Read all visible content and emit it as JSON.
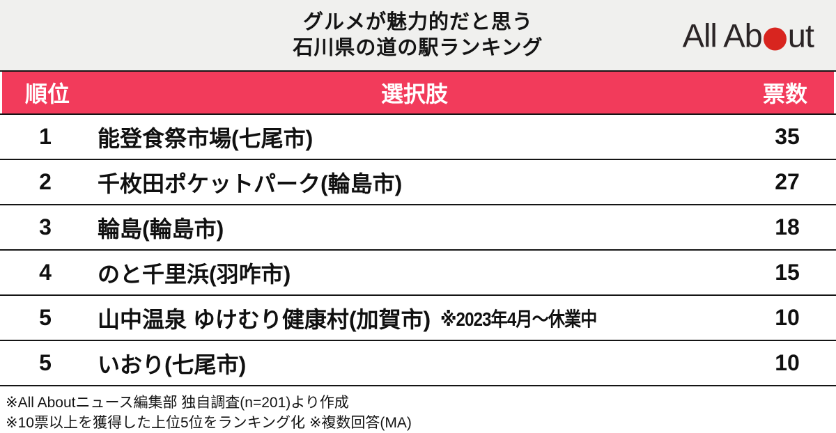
{
  "header": {
    "title_line1": "グルメが魅力的だと思う",
    "title_line2": "石川県の道の駅ランキング",
    "logo": {
      "part1": "All Ab",
      "part2": "ut",
      "dot_color": "#d8251f"
    }
  },
  "colors": {
    "title_bar_bg": "#f0f0ee",
    "table_header_bg": "#f23b5b",
    "table_header_text": "#ffffff",
    "border": "#151515",
    "logo_dot": "#d8251f"
  },
  "table": {
    "headers": {
      "rank": "順位",
      "choice": "選択肢",
      "votes": "票数"
    },
    "rows": [
      {
        "rank": "1",
        "name": "能登食祭市場(七尾市)",
        "note": "",
        "votes": "35"
      },
      {
        "rank": "2",
        "name": "千枚田ポケットパーク(輪島市)",
        "note": "",
        "votes": "27"
      },
      {
        "rank": "3",
        "name": "輪島(輪島市)",
        "note": "",
        "votes": "18"
      },
      {
        "rank": "4",
        "name": "のと千里浜(羽咋市)",
        "note": "",
        "votes": "15"
      },
      {
        "rank": "5",
        "name": "山中温泉 ゆけむり健康村(加賀市)",
        "note": "※2023年4月〜休業中",
        "votes": "10"
      },
      {
        "rank": "5",
        "name": "いおり(七尾市)",
        "note": "",
        "votes": "10"
      }
    ]
  },
  "footer": {
    "line1": "※All Aboutニュース編集部 独自調査(n=201)より作成",
    "line2": "※10票以上を獲得した上位5位をランキング化 ※複数回答(MA)"
  },
  "chart_data": {
    "type": "table",
    "title": "グルメが魅力的だと思う石川県の道の駅ランキング",
    "columns": [
      "順位",
      "選択肢",
      "票数"
    ],
    "rows": [
      {
        "rank": 1,
        "choice": "能登食祭市場(七尾市)",
        "votes": 35
      },
      {
        "rank": 2,
        "choice": "千枚田ポケットパーク(輪島市)",
        "votes": 27
      },
      {
        "rank": 3,
        "choice": "輪島(輪島市)",
        "votes": 18
      },
      {
        "rank": 4,
        "choice": "のと千里浜(羽咋市)",
        "votes": 15
      },
      {
        "rank": 5,
        "choice": "山中温泉 ゆけむり健康村(加賀市) ※2023年4月〜休業中",
        "votes": 10
      },
      {
        "rank": 5,
        "choice": "いおり(七尾市)",
        "votes": 10
      }
    ],
    "source_note": "All Aboutニュース編集部 独自調査 n=201、10票以上を獲得した上位5位をランキング化、複数回答(MA)"
  }
}
